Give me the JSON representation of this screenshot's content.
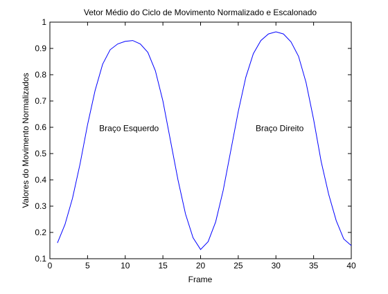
{
  "chart_data": {
    "type": "line",
    "title": "Vetor Médio do Ciclo de Movimento Normalizado e Escalonado",
    "xlabel": "Frame",
    "ylabel": "Valores do Movimento Normalizados",
    "xlim": [
      0,
      40
    ],
    "ylim": [
      0.1,
      1
    ],
    "xticks": [
      "0",
      "5",
      "10",
      "15",
      "20",
      "25",
      "30",
      "35",
      "40"
    ],
    "yticks": [
      "0.1",
      "0.2",
      "0.3",
      "0.4",
      "0.5",
      "0.6",
      "0.7",
      "0.8",
      "0.9",
      "1"
    ],
    "grid": false,
    "series": [
      {
        "color": "#0000ff",
        "x": [
          1,
          2,
          3,
          4,
          5,
          6,
          7,
          8,
          9,
          10,
          11,
          12,
          13,
          14,
          15,
          16,
          17,
          18,
          19,
          20,
          21,
          22,
          23,
          24,
          25,
          26,
          27,
          28,
          29,
          30,
          31,
          32,
          33,
          34,
          35,
          36,
          37,
          38,
          39,
          40
        ],
        "y": [
          0.16,
          0.23,
          0.33,
          0.46,
          0.61,
          0.74,
          0.84,
          0.895,
          0.917,
          0.927,
          0.93,
          0.917,
          0.885,
          0.815,
          0.7,
          0.55,
          0.4,
          0.27,
          0.18,
          0.135,
          0.165,
          0.24,
          0.36,
          0.51,
          0.66,
          0.79,
          0.88,
          0.93,
          0.955,
          0.963,
          0.955,
          0.925,
          0.87,
          0.77,
          0.63,
          0.47,
          0.345,
          0.245,
          0.175,
          0.15
        ]
      }
    ],
    "annotations": [
      {
        "text": "Braço Esquerdo",
        "x": 10.5,
        "y": 0.585
      },
      {
        "text": "Braço Direito",
        "x": 30.5,
        "y": 0.585
      }
    ]
  }
}
